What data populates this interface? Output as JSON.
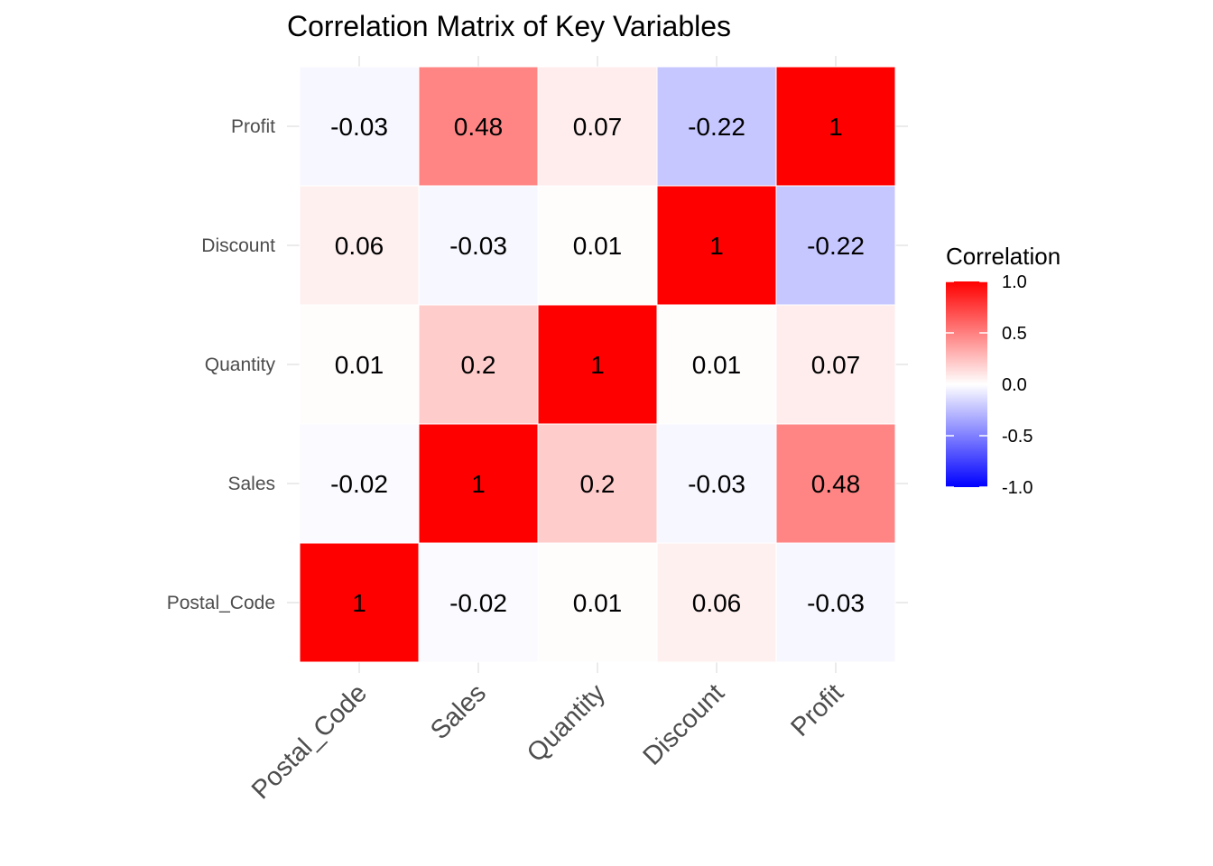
{
  "chart_data": {
    "type": "heatmap",
    "title": "Correlation Matrix of Key Variables",
    "x_categories": [
      "Postal_Code",
      "Sales",
      "Quantity",
      "Discount",
      "Profit"
    ],
    "y_categories": [
      "Postal_Code",
      "Sales",
      "Quantity",
      "Discount",
      "Profit"
    ],
    "values": [
      [
        1,
        -0.02,
        0.01,
        0.06,
        -0.03
      ],
      [
        -0.02,
        1,
        0.2,
        -0.03,
        0.48
      ],
      [
        0.01,
        0.2,
        1,
        0.01,
        0.07
      ],
      [
        0.06,
        -0.03,
        0.01,
        1,
        -0.22
      ],
      [
        -0.03,
        0.48,
        0.07,
        -0.22,
        1
      ]
    ],
    "labels": [
      [
        "1",
        "-0.02",
        "0.01",
        "0.06",
        "-0.03"
      ],
      [
        "-0.02",
        "1",
        "0.2",
        "-0.03",
        "0.48"
      ],
      [
        "0.01",
        "0.2",
        "1",
        "0.01",
        "0.07"
      ],
      [
        "0.06",
        "-0.03",
        "0.01",
        "1",
        "-0.22"
      ],
      [
        "-0.03",
        "0.48",
        "0.07",
        "-0.22",
        "1"
      ]
    ],
    "legend": {
      "title": "Correlation",
      "position": "right",
      "ticks": [
        "1.0",
        "0.5",
        "0.0",
        "-0.5",
        "-1.0"
      ],
      "tick_values": [
        1.0,
        0.5,
        0.0,
        -0.5,
        -1.0
      ],
      "range": [
        -1,
        1
      ]
    },
    "colors": {
      "low": "#0000ff",
      "mid": "#ffffff",
      "high": "#ff0000"
    }
  }
}
